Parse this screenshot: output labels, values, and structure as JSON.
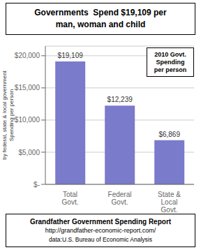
{
  "chart_data": {
    "type": "bar",
    "title": "Governments  Spend $19,109 per\nman, woman and child",
    "categories": [
      "Total\nGovt.",
      "Federal\nGovt.",
      "State &\nLocal\nGovt."
    ],
    "values": [
      19109,
      12239,
      6869
    ],
    "value_labels": [
      "$19,109",
      "$12,239",
      "$6,869"
    ],
    "data_labels": true,
    "color": "#7b7bcc",
    "ylabel": "Spending per person\nby federal, state & local government",
    "ylim": [
      0,
      21500
    ],
    "yticks": [
      {
        "value": 0,
        "label": "$-"
      },
      {
        "value": 5000,
        "label": "$5,000"
      },
      {
        "value": 10000,
        "label": "$10,000"
      },
      {
        "value": 15000,
        "label": "$15,000"
      },
      {
        "value": 20000,
        "label": "$20,000"
      }
    ],
    "grid": true,
    "annotations": [
      "2010 Govt.\nSpending\nper person",
      "Grandfather Government Spending Report",
      "http://grandfather-economic-report.com/",
      "data:U.S. Bureau of Economic Analysis"
    ]
  }
}
